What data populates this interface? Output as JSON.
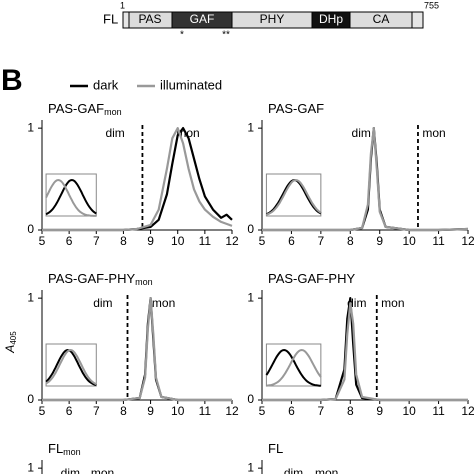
{
  "domain_diagram": {
    "label": "FL",
    "start": "1",
    "end": "755",
    "domains": [
      "PAS",
      "GAF",
      "PHY",
      "DHp",
      "CA"
    ],
    "markers": [
      "*",
      "**"
    ]
  },
  "panel_label": "B",
  "chart_data": [
    {
      "type": "line",
      "title": "PAS-GAF",
      "title_sub": "mon",
      "xlim": [
        5,
        12
      ],
      "ylim": [
        0,
        1.08
      ],
      "xticks": [
        5,
        6,
        7,
        8,
        9,
        10,
        11,
        12
      ],
      "yticks": [
        0,
        1
      ],
      "vline": 8.7,
      "annotations": [
        "dim",
        "mon"
      ],
      "x": [
        5,
        6,
        7,
        8,
        8.5,
        9,
        9.3,
        9.6,
        9.8,
        10,
        10.2,
        10.4,
        10.6,
        10.8,
        11,
        11.3,
        11.6,
        11.8,
        12
      ],
      "series": [
        {
          "name": "dark",
          "color": "#000000",
          "values": [
            0,
            0,
            0,
            0,
            0.01,
            0.03,
            0.1,
            0.35,
            0.65,
            0.93,
            1.0,
            0.9,
            0.7,
            0.5,
            0.33,
            0.2,
            0.12,
            0.15,
            0.1
          ]
        },
        {
          "name": "illuminated",
          "color": "#999999",
          "values": [
            0,
            0,
            0,
            0,
            0.01,
            0.05,
            0.2,
            0.6,
            0.9,
            1.0,
            0.85,
            0.6,
            0.4,
            0.28,
            0.2,
            0.13,
            0.08,
            0.06,
            0.04
          ]
        }
      ]
    },
    {
      "type": "line",
      "title": "PAS-GAF",
      "xlim": [
        5,
        12
      ],
      "ylim": [
        0,
        1.08
      ],
      "xticks": [
        5,
        6,
        7,
        8,
        9,
        10,
        11,
        12
      ],
      "yticks": [
        0,
        1
      ],
      "vline": 10.3,
      "annotations": [
        "dim",
        "mon"
      ],
      "x": [
        5,
        6,
        7,
        8,
        8.4,
        8.6,
        8.7,
        8.8,
        8.9,
        9.0,
        9.2,
        10,
        11,
        12
      ],
      "series": [
        {
          "name": "dark",
          "color": "#000000",
          "values": [
            0,
            0,
            0,
            0,
            0.02,
            0.2,
            0.7,
            1.0,
            0.65,
            0.2,
            0.03,
            0,
            0,
            0.01
          ]
        },
        {
          "name": "illuminated",
          "color": "#999999",
          "values": [
            0,
            0,
            0,
            0,
            0.02,
            0.25,
            0.75,
            1.0,
            0.6,
            0.18,
            0.03,
            0,
            0,
            0.01
          ]
        }
      ]
    },
    {
      "type": "line",
      "title": "PAS-GAF-PHY",
      "title_sub": "mon",
      "ylabel": "A",
      "ylabel_sub": "405",
      "xlim": [
        5,
        12
      ],
      "ylim": [
        0,
        1.08
      ],
      "xticks": [
        5,
        6,
        7,
        8,
        9,
        10,
        11,
        12
      ],
      "yticks": [
        0,
        1
      ],
      "vline": 8.15,
      "annotations": [
        "dim",
        "mon"
      ],
      "x": [
        5,
        6,
        7,
        8,
        8.6,
        8.8,
        8.9,
        9.0,
        9.1,
        9.2,
        9.4,
        10,
        11,
        12
      ],
      "series": [
        {
          "name": "dark",
          "color": "#000000",
          "values": [
            0,
            0,
            0,
            0,
            0.02,
            0.25,
            0.75,
            1.0,
            0.6,
            0.2,
            0.03,
            0,
            0,
            0
          ]
        },
        {
          "name": "illuminated",
          "color": "#999999",
          "values": [
            0,
            0,
            0,
            0,
            0.02,
            0.22,
            0.7,
            1.0,
            0.65,
            0.22,
            0.03,
            0,
            0,
            0
          ]
        }
      ]
    },
    {
      "type": "line",
      "title": "PAS-GAF-PHY",
      "xlim": [
        5,
        12
      ],
      "ylim": [
        0,
        1.08
      ],
      "xticks": [
        5,
        6,
        7,
        8,
        9,
        10,
        11,
        12
      ],
      "yticks": [
        0,
        1
      ],
      "vline": 8.9,
      "annotations": [
        "dim",
        "mon"
      ],
      "x": [
        5,
        6,
        7,
        7.5,
        7.8,
        7.9,
        8.0,
        8.1,
        8.2,
        8.4,
        9,
        10,
        11,
        12
      ],
      "series": [
        {
          "name": "dark",
          "color": "#000000",
          "values": [
            0,
            0,
            0,
            0.01,
            0.3,
            0.8,
            1.0,
            0.55,
            0.15,
            0.02,
            0,
            0,
            0,
            0
          ]
        },
        {
          "name": "illuminated",
          "color": "#999999",
          "values": [
            0,
            0,
            0,
            0.01,
            0.2,
            0.65,
            0.95,
            0.75,
            0.25,
            0.03,
            0,
            0,
            0,
            0
          ]
        }
      ]
    },
    {
      "type": "line",
      "title": "FL",
      "title_sub": "mon",
      "xlim": [
        5,
        12
      ],
      "ylim": [
        0,
        1.08
      ],
      "yticks": [
        1
      ],
      "annotations": [
        "dim",
        "mon"
      ]
    },
    {
      "type": "line",
      "title": "FL",
      "xlim": [
        5,
        12
      ],
      "ylim": [
        0,
        1.08
      ],
      "yticks": [
        1
      ],
      "annotations": [
        "dim",
        "mon"
      ]
    }
  ]
}
